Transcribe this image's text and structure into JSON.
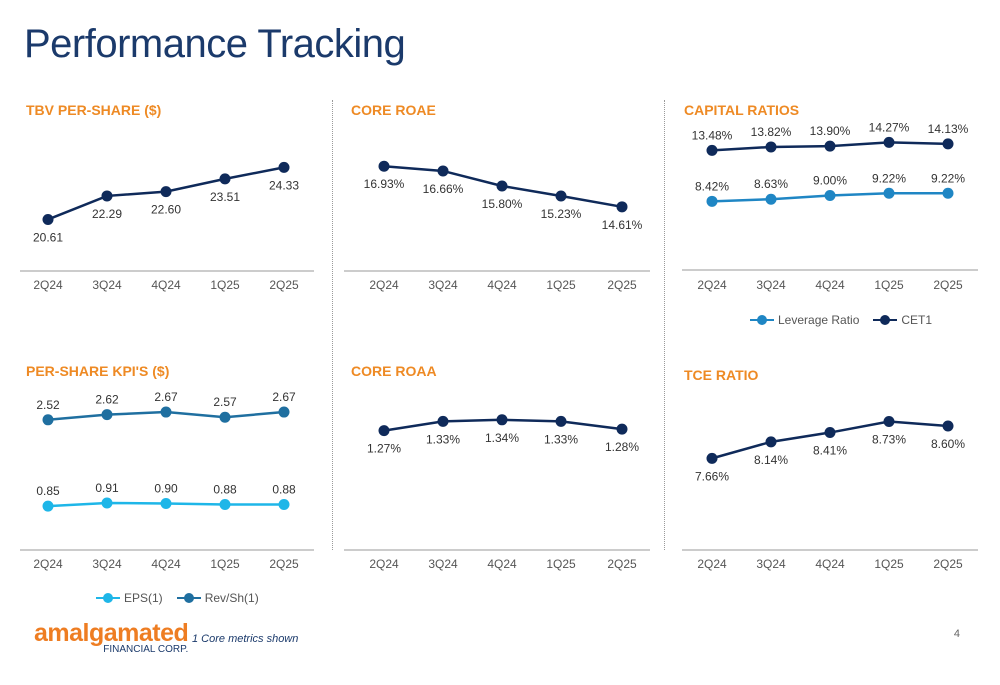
{
  "page": {
    "title": "Performance Tracking",
    "footnote": "1 Core metrics shown",
    "page_number": "4",
    "logo_main": "amalgamated",
    "logo_sub": "FINANCIAL CORP."
  },
  "colors": {
    "title": "#1b3a6b",
    "section_title": "#ee8a24",
    "navy": "#0f2a5a",
    "teal": "#1f86c4",
    "light_blue": "#1eb6e8",
    "steel_blue": "#1f6fa0",
    "axis": "#9a9a9a",
    "label": "#333333"
  },
  "chart_data": [
    {
      "id": "tbv",
      "type": "line",
      "title": "TBV PER-SHARE ($)",
      "categories": [
        "2Q24",
        "3Q24",
        "4Q24",
        "1Q25",
        "2Q25"
      ],
      "series": [
        {
          "name": "",
          "values": [
            20.61,
            22.29,
            22.6,
            23.51,
            24.33
          ],
          "labels": [
            "20.61",
            "22.29",
            "22.60",
            "23.51",
            "24.33"
          ],
          "color": "#0f2a5a",
          "label_pos": "below"
        }
      ],
      "ylim": [
        17,
        27
      ],
      "legend": []
    },
    {
      "id": "roae",
      "type": "line",
      "title": "CORE ROAE",
      "categories": [
        "2Q24",
        "3Q24",
        "4Q24",
        "1Q25",
        "2Q25"
      ],
      "series": [
        {
          "name": "",
          "values": [
            16.93,
            16.66,
            15.8,
            15.23,
            14.61
          ],
          "labels": [
            "16.93%",
            "16.66%",
            "15.80%",
            "15.23%",
            "14.61%"
          ],
          "color": "#0f2a5a",
          "label_pos": "below"
        }
      ],
      "ylim": [
        11,
        19
      ],
      "legend": []
    },
    {
      "id": "capital",
      "type": "line",
      "title": "CAPITAL RATIOS",
      "categories": [
        "2Q24",
        "3Q24",
        "4Q24",
        "1Q25",
        "2Q25"
      ],
      "series": [
        {
          "name": "Leverage Ratio",
          "values": [
            8.42,
            8.63,
            9.0,
            9.22,
            9.22
          ],
          "labels": [
            "8.42%",
            "8.63%",
            "9.00%",
            "9.22%",
            "9.22%"
          ],
          "color": "#1f86c4",
          "label_pos": "above"
        },
        {
          "name": "CET1",
          "values": [
            13.48,
            13.82,
            13.9,
            14.27,
            14.13
          ],
          "labels": [
            "13.48%",
            "13.82%",
            "13.90%",
            "14.27%",
            "14.13%"
          ],
          "color": "#0f2a5a",
          "label_pos": "above"
        }
      ],
      "ylim": [
        1.6,
        16
      ],
      "legend": [
        "Leverage Ratio",
        "CET1"
      ]
    },
    {
      "id": "kpis",
      "type": "line",
      "title": "PER-SHARE KPI'S ($)",
      "categories": [
        "2Q24",
        "3Q24",
        "4Q24",
        "1Q25",
        "2Q25"
      ],
      "series": [
        {
          "name": "EPS(1)",
          "values": [
            0.85,
            0.91,
            0.9,
            0.88,
            0.88
          ],
          "labels": [
            "0.85",
            "0.91",
            "0.90",
            "0.88",
            "0.88"
          ],
          "color": "#1eb6e8",
          "label_pos": "above",
          "plot_offset": 0.0
        },
        {
          "name": "Rev/Sh(1)",
          "values": [
            2.52,
            2.62,
            2.67,
            2.57,
            2.67
          ],
          "labels": [
            "2.52",
            "2.62",
            "2.67",
            "2.57",
            "2.67"
          ],
          "color": "#1f6fa0",
          "label_pos": "above"
        }
      ],
      "ylim": [
        0,
        3
      ],
      "legend": [
        "EPS(1)",
        "Rev/Sh(1)"
      ]
    },
    {
      "id": "roaa",
      "type": "line",
      "title": "CORE ROAA",
      "categories": [
        "2Q24",
        "3Q24",
        "4Q24",
        "1Q25",
        "2Q25"
      ],
      "series": [
        {
          "name": "",
          "values": [
            1.27,
            1.33,
            1.34,
            1.33,
            1.28
          ],
          "labels": [
            "1.27%",
            "1.33%",
            "1.34%",
            "1.33%",
            "1.28%"
          ],
          "color": "#0f2a5a",
          "label_pos": "below"
        }
      ],
      "ylim": [
        0.5,
        1.5
      ],
      "legend": []
    },
    {
      "id": "tce",
      "type": "line",
      "title": "TCE RATIO",
      "categories": [
        "2Q24",
        "3Q24",
        "4Q24",
        "1Q25",
        "2Q25"
      ],
      "series": [
        {
          "name": "",
          "values": [
            7.66,
            8.14,
            8.41,
            8.73,
            8.6
          ],
          "labels": [
            "7.66%",
            "8.14%",
            "8.41%",
            "8.73%",
            "8.60%"
          ],
          "color": "#0f2a5a",
          "label_pos": "below"
        }
      ],
      "ylim": [
        5,
        9.5
      ],
      "legend": []
    }
  ]
}
